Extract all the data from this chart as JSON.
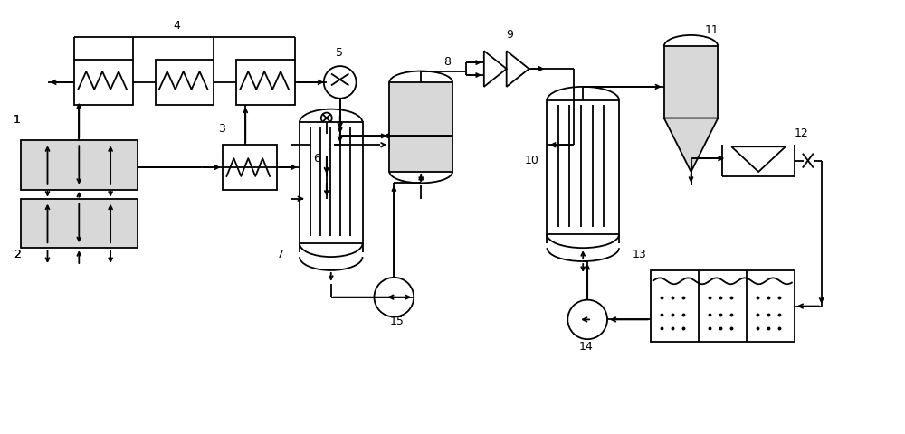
{
  "fig_width": 10.0,
  "fig_height": 4.81,
  "bg_color": "#ffffff",
  "line_color": "#000000",
  "fill_color": "#d8d8d8",
  "label_fontsize": 9
}
